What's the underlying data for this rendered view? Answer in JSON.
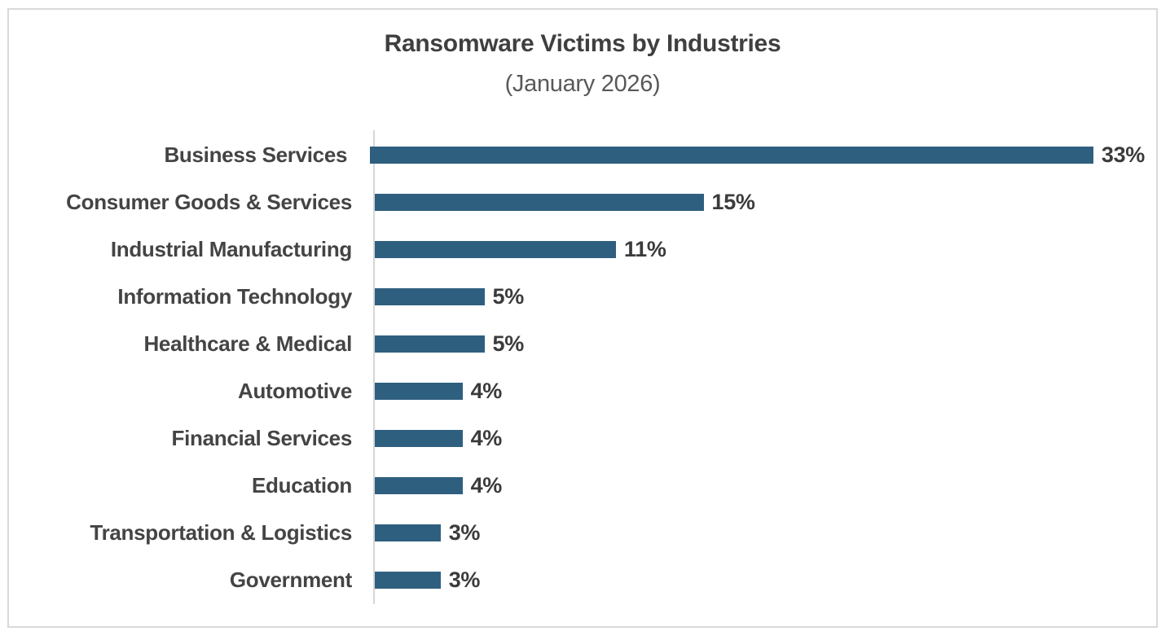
{
  "title": "Ransomware Victims by Industries",
  "subtitle": "(January 2026)",
  "colors": {
    "bar": "#2E5F7F",
    "axis_line": "#D6D6D6",
    "frame_border": "#D9D9D9",
    "title_text": "#3F3F3F",
    "subtitle_text": "#595959",
    "category_text": "#444444",
    "value_text": "#3B3B3B",
    "background": "#FFFFFF"
  },
  "chart_data": {
    "type": "bar",
    "orientation": "horizontal",
    "title": "Ransomware Victims by Industries",
    "subtitle": "(January 2026)",
    "categories": [
      "Business Services",
      "Consumer Goods & Services",
      "Industrial Manufacturing",
      "Information Technology",
      "Healthcare & Medical",
      "Automotive",
      "Financial Services",
      "Education",
      "Transportation & Logistics",
      "Government"
    ],
    "values": [
      33,
      15,
      11,
      5,
      5,
      4,
      4,
      4,
      3,
      3
    ],
    "value_labels": [
      "33%",
      "15%",
      "11%",
      "5%",
      "5%",
      "4%",
      "4%",
      "4%",
      "3%",
      "3%"
    ],
    "unit": "%",
    "xlim": [
      0,
      35
    ],
    "grid": false,
    "legend": false,
    "data_labels": "outside-end",
    "bar_color": "#2E5F7F"
  }
}
